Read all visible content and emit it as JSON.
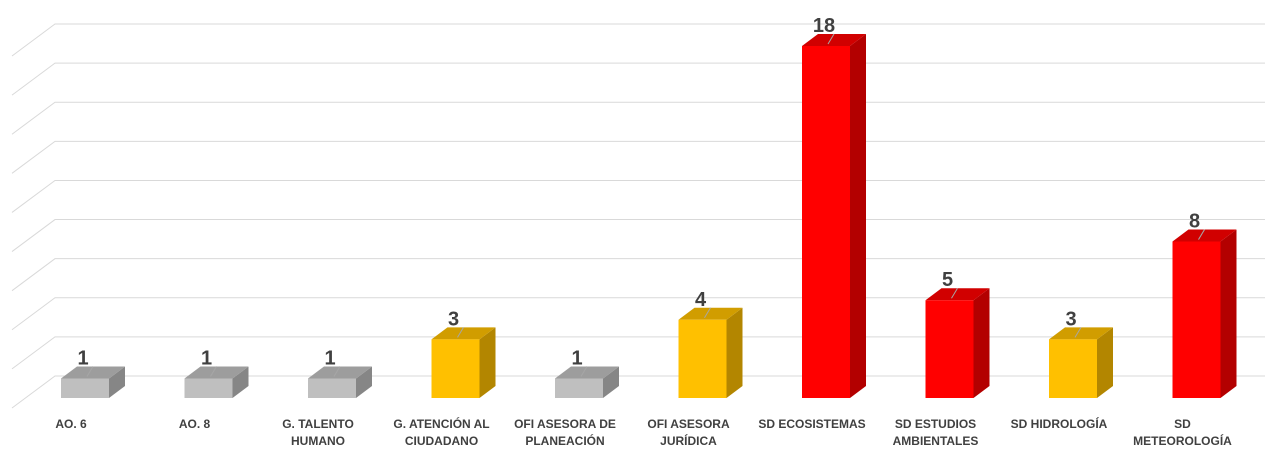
{
  "chart_data": {
    "type": "bar3d",
    "categories": [
      "AO. 6",
      "AO. 8",
      "G. TALENTO HUMANO",
      "G. ATENCIÓN AL CIUDADANO",
      "OFI ASESORA DE PLANEACIÓN",
      "OFI ASESORA JURÍDICA",
      "SD ECOSISTEMAS",
      "SD ESTUDIOS AMBIENTALES",
      "SD HIDROLOGÍA",
      "SD METEOROLOGÍA"
    ],
    "values": [
      1,
      1,
      1,
      3,
      1,
      4,
      18,
      5,
      3,
      8
    ],
    "colors": [
      "#bfbfbf",
      "#bfbfbf",
      "#bfbfbf",
      "#ffc000",
      "#bfbfbf",
      "#ffc000",
      "#ff0000",
      "#ff0000",
      "#ffc000",
      "#ff0000"
    ],
    "ylim": [
      0,
      18
    ],
    "yticks": [
      0,
      2,
      4,
      6,
      8,
      10,
      12,
      14,
      16,
      18
    ],
    "grid": true
  }
}
